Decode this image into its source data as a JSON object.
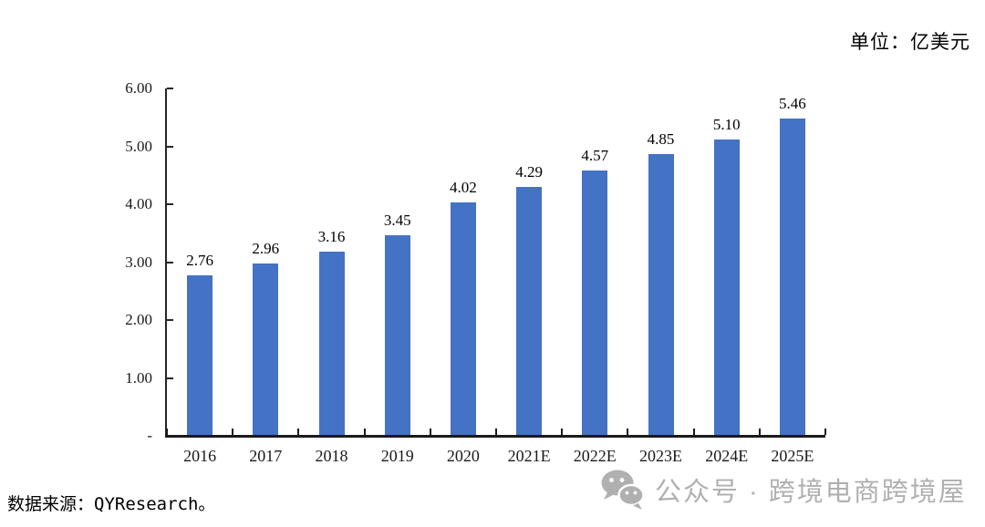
{
  "unit_label": "单位：亿美元",
  "source_note": "数据来源：QYResearch。",
  "watermark": {
    "icon": "wechat-icon",
    "text": "公众号 · 跨境电商跨境屋",
    "color": "#b0b0b0"
  },
  "chart_data": {
    "type": "bar",
    "title": "",
    "xlabel": "",
    "ylabel": "",
    "categories": [
      "2016",
      "2017",
      "2018",
      "2019",
      "2020",
      "2021E",
      "2022E",
      "2023E",
      "2024E",
      "2025E"
    ],
    "values": [
      2.76,
      2.96,
      3.16,
      3.45,
      4.02,
      4.29,
      4.57,
      4.85,
      5.1,
      5.46
    ],
    "value_labels": [
      "2.76",
      "2.96",
      "3.16",
      "3.45",
      "4.02",
      "4.29",
      "4.57",
      "4.85",
      "5.10",
      "5.46"
    ],
    "ylim": [
      0,
      6
    ],
    "yticks": [
      {
        "value": 0,
        "label": "-"
      },
      {
        "value": 1,
        "label": "1.00"
      },
      {
        "value": 2,
        "label": "2.00"
      },
      {
        "value": 3,
        "label": "3.00"
      },
      {
        "value": 4,
        "label": "4.00"
      },
      {
        "value": 5,
        "label": "5.00"
      },
      {
        "value": 6,
        "label": "6.00"
      }
    ],
    "bar_color": "#4472C4",
    "axis_color": "#1a1a1a",
    "grid": false,
    "legend_position": "none",
    "value_labels_shown": true
  }
}
